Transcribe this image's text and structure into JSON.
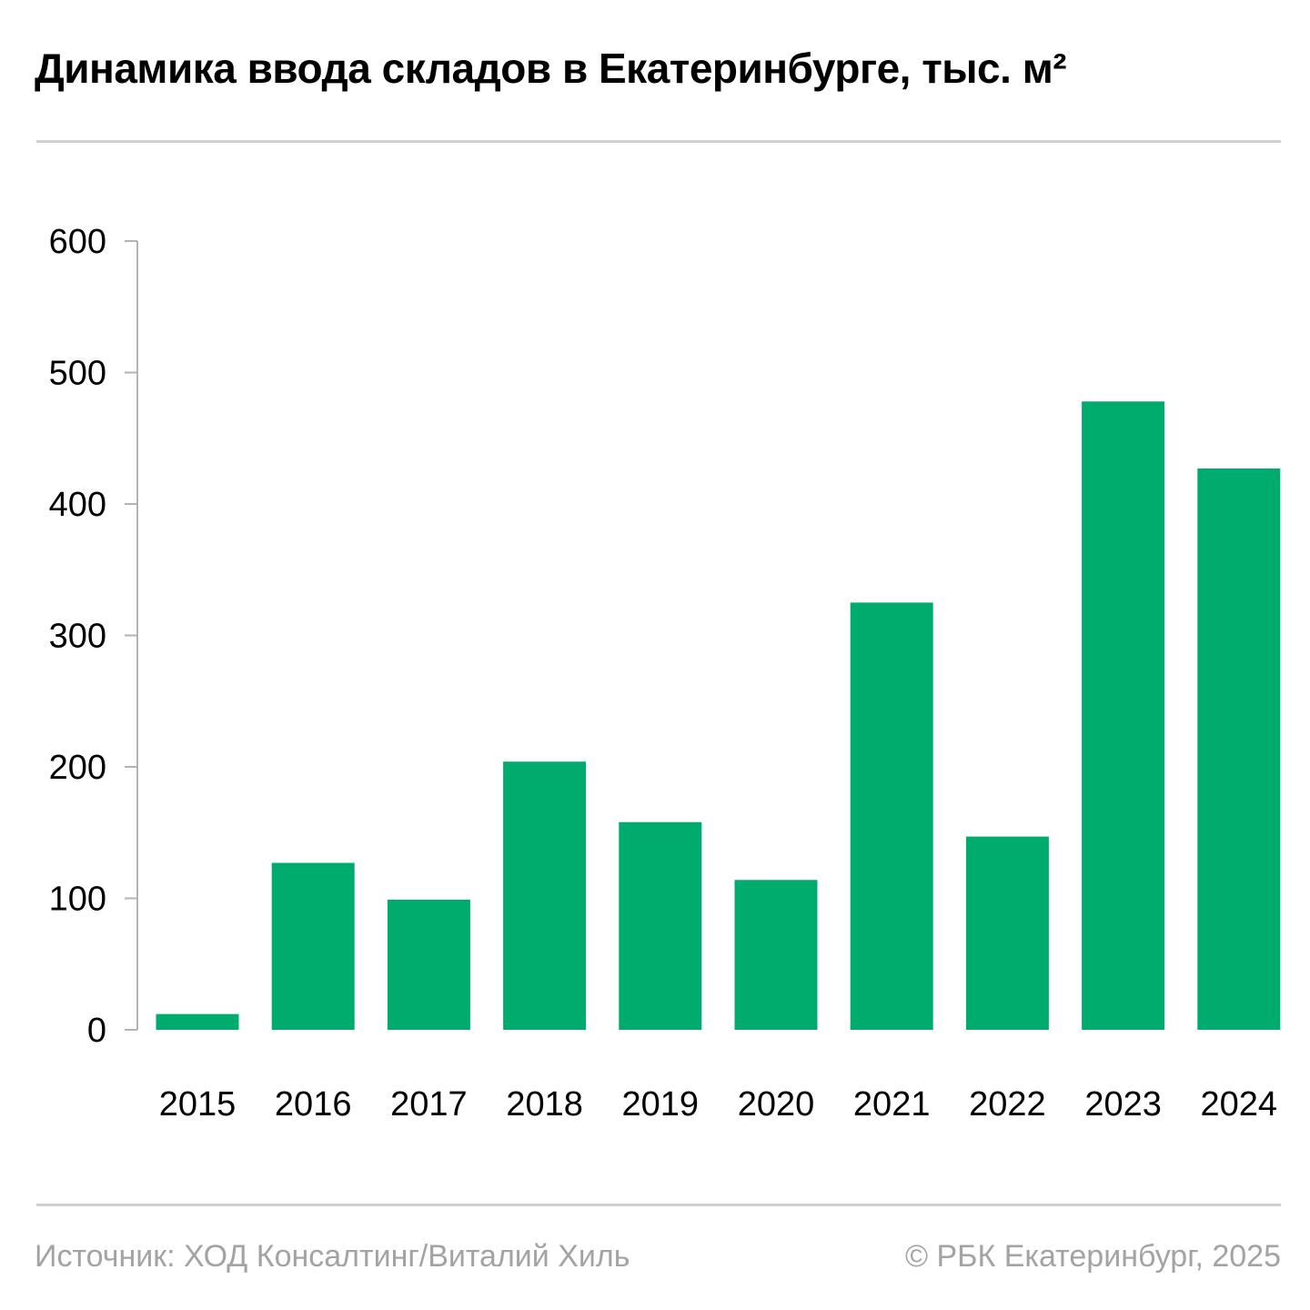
{
  "chart_data": {
    "type": "bar",
    "title": "Динамика ввода складов в Екатеринбурге, тыс. м²",
    "xlabel": "",
    "ylabel": "",
    "categories": [
      "2015",
      "2016",
      "2017",
      "2018",
      "2019",
      "2020",
      "2021",
      "2022",
      "2023",
      "2024"
    ],
    "values": [
      12,
      127,
      99,
      204,
      158,
      114,
      325,
      147,
      478,
      427
    ],
    "ylim": [
      0,
      600
    ],
    "yticks": [
      0,
      100,
      200,
      300,
      400,
      500,
      600
    ],
    "ytick_labels": [
      "0",
      "100",
      "200",
      "300",
      "400",
      "500",
      "600"
    ],
    "grid": false,
    "legend": "none"
  },
  "colors": {
    "bar": "#00ab6e",
    "axis": "#b3b3b3",
    "tick_text": "#000000"
  },
  "footer": {
    "source": "Источник: ХОД Консалтинг/Виталий Хиль",
    "copyright": "© РБК Екатеринбург, 2025"
  }
}
